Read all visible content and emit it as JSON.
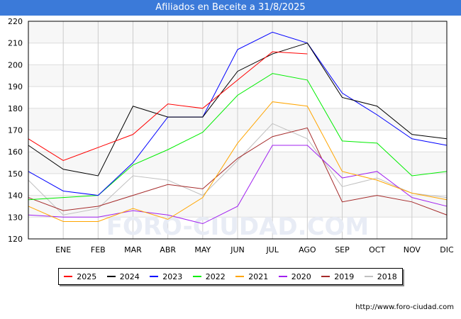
{
  "chart_data": {
    "type": "line",
    "title": "Afiliados en Beceite a 31/8/2025",
    "categories": [
      "",
      "ENE",
      "FEB",
      "MAR",
      "ABR",
      "MAY",
      "JUN",
      "JUL",
      "AGO",
      "SEP",
      "OCT",
      "NOV",
      "DIC"
    ],
    "ylim": [
      120,
      220
    ],
    "yticks": [
      120,
      130,
      140,
      150,
      160,
      170,
      180,
      190,
      200,
      210,
      220
    ],
    "grid": true,
    "legend_position": "bottom",
    "series": [
      {
        "name": "2025",
        "color": "#ff0000",
        "values": [
          166,
          156,
          162,
          168,
          182,
          180,
          193,
          206,
          205,
          null,
          null,
          null,
          null
        ]
      },
      {
        "name": "2024",
        "color": "#000000",
        "values": [
          163,
          152,
          149,
          181,
          176,
          176,
          197,
          205,
          210,
          185,
          181,
          168,
          166
        ]
      },
      {
        "name": "2023",
        "color": "#0000ff",
        "values": [
          151,
          142,
          140,
          155,
          176,
          176,
          207,
          215,
          210,
          187,
          177,
          166,
          163
        ]
      },
      {
        "name": "2022",
        "color": "#00ee00",
        "values": [
          138,
          139,
          140,
          154,
          161,
          169,
          186,
          196,
          193,
          165,
          164,
          149,
          151
        ]
      },
      {
        "name": "2021",
        "color": "#ffa500",
        "values": [
          135,
          128,
          128,
          134,
          129,
          139,
          164,
          183,
          181,
          151,
          147,
          141,
          138
        ]
      },
      {
        "name": "2020",
        "color": "#a020f0",
        "values": [
          131,
          130,
          130,
          133,
          131,
          127,
          135,
          163,
          163,
          148,
          151,
          139,
          135
        ]
      },
      {
        "name": "2019",
        "color": "#a52a2a",
        "values": [
          139,
          133,
          135,
          140,
          145,
          143,
          157,
          167,
          171,
          137,
          140,
          137,
          131
        ]
      },
      {
        "name": "2018",
        "color": "#c0c0c0",
        "values": [
          147,
          131,
          134,
          149,
          147,
          140,
          156,
          173,
          166,
          144,
          148,
          141,
          139
        ]
      }
    ]
  },
  "watermark": "FORO-CIUDAD.COM",
  "footer": "http://www.foro-ciudad.com"
}
